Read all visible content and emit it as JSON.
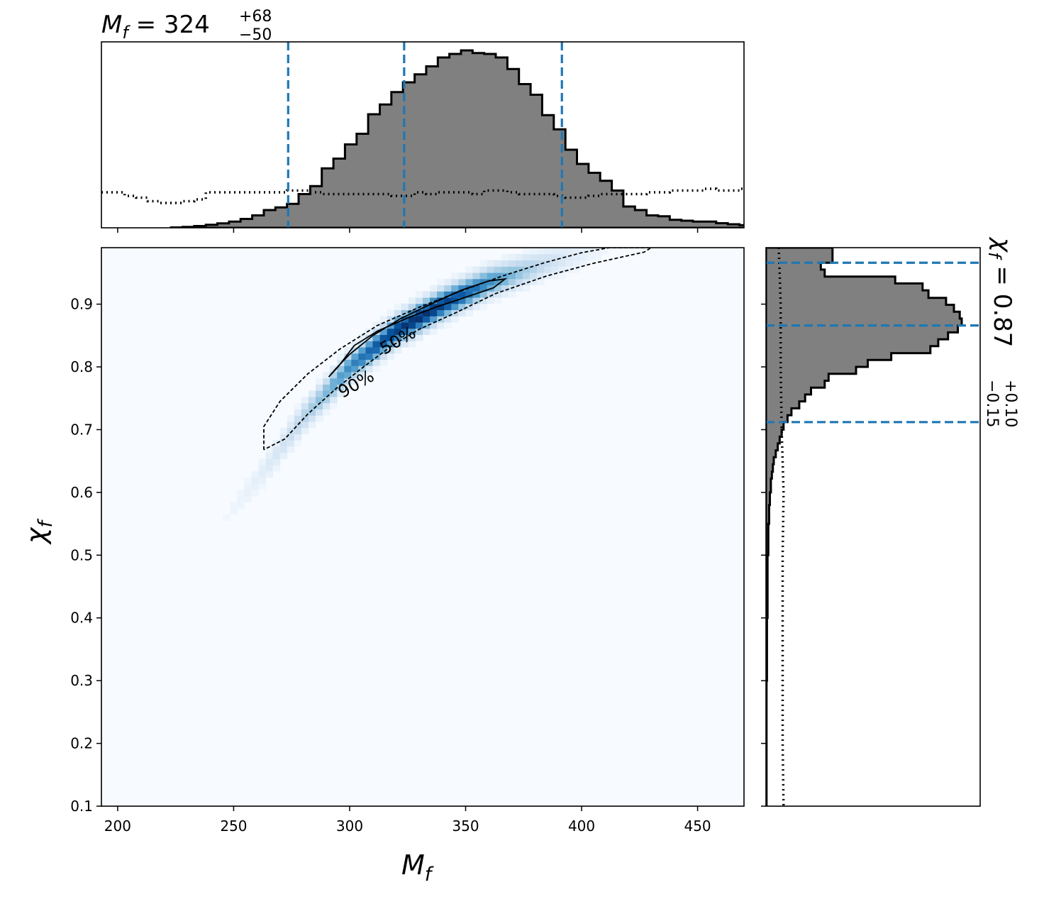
{
  "chart_data": {
    "type": "corner-2d-histogram",
    "x_axis": {
      "label": "M",
      "label_sub": "f",
      "ticks": [
        200,
        250,
        300,
        350,
        400,
        450
      ],
      "tick_labels": [
        "200",
        "250",
        "300",
        "350",
        "400",
        "450"
      ],
      "range": [
        193,
        470
      ]
    },
    "y_axis": {
      "label": "χ",
      "label_sub": "f",
      "ticks": [
        0.1,
        0.2,
        0.3,
        0.4,
        0.5,
        0.6,
        0.7,
        0.8,
        0.9
      ],
      "tick_labels": [
        "0.1",
        "0.2",
        "0.3",
        "0.4",
        "0.5",
        "0.6",
        "0.7",
        "0.8",
        "0.9"
      ],
      "range": [
        0.1,
        0.99
      ]
    },
    "top_title": {
      "symbol": "M",
      "sub": "f",
      "eq": " = ",
      "median": "324",
      "upper": "+68",
      "lower": "−50"
    },
    "right_title": {
      "symbol": "χ",
      "sub": "f",
      "eq": " = ",
      "median": "0.87",
      "upper": "+0.10",
      "lower": "−0.15"
    },
    "mf_quantiles": [
      273.5,
      323.5,
      391.5
    ],
    "chi_quantiles": [
      0.712,
      0.866,
      0.966
    ],
    "mf_hist": {
      "start": 223,
      "width": 5,
      "counts": [
        0.002,
        0.005,
        0.01,
        0.017,
        0.025,
        0.035,
        0.05,
        0.07,
        0.1,
        0.115,
        0.135,
        0.19,
        0.235,
        0.335,
        0.39,
        0.47,
        0.53,
        0.64,
        0.695,
        0.765,
        0.82,
        0.865,
        0.91,
        0.96,
        0.98,
        1.0,
        0.985,
        0.98,
        0.96,
        0.895,
        0.81,
        0.75,
        0.635,
        0.555,
        0.44,
        0.36,
        0.31,
        0.265,
        0.21,
        0.12,
        0.1,
        0.07,
        0.065,
        0.045,
        0.04,
        0.035,
        0.035,
        0.026,
        0.02,
        0.015,
        0.008,
        0.004,
        0.002,
        0.0
      ]
    },
    "mf_prior": {
      "start": 193,
      "width": 5,
      "values": [
        0.2,
        0.2,
        0.18,
        0.17,
        0.15,
        0.14,
        0.14,
        0.15,
        0.16,
        0.2,
        0.2,
        0.2,
        0.2,
        0.2,
        0.2,
        0.2,
        0.21,
        0.21,
        0.2,
        0.19,
        0.19,
        0.19,
        0.19,
        0.19,
        0.19,
        0.18,
        0.18,
        0.2,
        0.19,
        0.2,
        0.2,
        0.2,
        0.19,
        0.21,
        0.21,
        0.2,
        0.19,
        0.19,
        0.19,
        0.18,
        0.17,
        0.17,
        0.18,
        0.19,
        0.19,
        0.19,
        0.19,
        0.2,
        0.2,
        0.21,
        0.21,
        0.21,
        0.22,
        0.21,
        0.21,
        0.22
      ]
    },
    "chi_hist": {
      "bins_top_down": [
        [
          0.99,
          0.966,
          0.34
        ],
        [
          0.966,
          0.955,
          0.28
        ],
        [
          0.955,
          0.944,
          0.3
        ],
        [
          0.944,
          0.933,
          0.66
        ],
        [
          0.933,
          0.922,
          0.8
        ],
        [
          0.922,
          0.91,
          0.83
        ],
        [
          0.91,
          0.899,
          0.92
        ],
        [
          0.899,
          0.888,
          0.96
        ],
        [
          0.888,
          0.877,
          0.99
        ],
        [
          0.877,
          0.866,
          1.0
        ],
        [
          0.866,
          0.855,
          0.98
        ],
        [
          0.855,
          0.844,
          0.93
        ],
        [
          0.844,
          0.833,
          0.88
        ],
        [
          0.833,
          0.822,
          0.84
        ],
        [
          0.822,
          0.811,
          0.64
        ],
        [
          0.811,
          0.8,
          0.52
        ],
        [
          0.8,
          0.789,
          0.46
        ],
        [
          0.789,
          0.778,
          0.32
        ],
        [
          0.778,
          0.767,
          0.3
        ],
        [
          0.767,
          0.756,
          0.23
        ],
        [
          0.756,
          0.745,
          0.2
        ],
        [
          0.745,
          0.734,
          0.17
        ],
        [
          0.734,
          0.723,
          0.13
        ],
        [
          0.723,
          0.712,
          0.11
        ],
        [
          0.712,
          0.7,
          0.09
        ],
        [
          0.7,
          0.689,
          0.08
        ],
        [
          0.689,
          0.678,
          0.07
        ],
        [
          0.678,
          0.667,
          0.06
        ],
        [
          0.667,
          0.656,
          0.05
        ],
        [
          0.656,
          0.645,
          0.04
        ],
        [
          0.645,
          0.633,
          0.035
        ],
        [
          0.633,
          0.622,
          0.03
        ],
        [
          0.622,
          0.6,
          0.025
        ],
        [
          0.6,
          0.58,
          0.02
        ],
        [
          0.58,
          0.55,
          0.016
        ],
        [
          0.55,
          0.5,
          0.012
        ],
        [
          0.5,
          0.4,
          0.008
        ],
        [
          0.4,
          0.3,
          0.005
        ],
        [
          0.3,
          0.1,
          0.003
        ]
      ]
    },
    "chi_prior": {
      "points": [
        [
          0.99,
          0.065
        ],
        [
          0.95,
          0.07
        ],
        [
          0.9,
          0.075
        ],
        [
          0.8,
          0.075
        ],
        [
          0.7,
          0.08
        ],
        [
          0.65,
          0.085
        ],
        [
          0.6,
          0.09
        ],
        [
          0.5,
          0.085
        ],
        [
          0.4,
          0.085
        ],
        [
          0.3,
          0.085
        ],
        [
          0.2,
          0.085
        ],
        [
          0.1,
          0.09
        ]
      ]
    },
    "contours": {
      "c50": [
        [
          291,
          0.784
        ],
        [
          294,
          0.797
        ],
        [
          300,
          0.82
        ],
        [
          310,
          0.85
        ],
        [
          322,
          0.877
        ],
        [
          335,
          0.9
        ],
        [
          348,
          0.922
        ],
        [
          360,
          0.937
        ],
        [
          367,
          0.94
        ],
        [
          362,
          0.926
        ],
        [
          350,
          0.911
        ],
        [
          337,
          0.895
        ],
        [
          325,
          0.878
        ],
        [
          312,
          0.857
        ],
        [
          302,
          0.834
        ],
        [
          295,
          0.8
        ],
        [
          291,
          0.784
        ]
      ],
      "c90": [
        [
          263,
          0.668
        ],
        [
          263,
          0.705
        ],
        [
          270,
          0.745
        ],
        [
          282,
          0.789
        ],
        [
          296,
          0.829
        ],
        [
          312,
          0.866
        ],
        [
          330,
          0.895
        ],
        [
          348,
          0.921
        ],
        [
          366,
          0.945
        ],
        [
          384,
          0.966
        ],
        [
          400,
          0.982
        ],
        [
          412,
          0.99
        ],
        [
          430,
          0.99
        ],
        [
          427,
          0.983
        ],
        [
          405,
          0.965
        ],
        [
          385,
          0.945
        ],
        [
          363,
          0.917
        ],
        [
          345,
          0.885
        ],
        [
          330,
          0.86
        ],
        [
          318,
          0.833
        ],
        [
          306,
          0.8
        ],
        [
          294,
          0.765
        ],
        [
          282,
          0.725
        ],
        [
          272,
          0.685
        ],
        [
          263,
          0.668
        ]
      ],
      "labels": [
        {
          "text": "50%",
          "x": 322,
          "y": 0.834,
          "angle": -30
        },
        {
          "text": "90%",
          "x": 304,
          "y": 0.765,
          "angle": -30
        }
      ]
    },
    "density": {
      "ridge": [
        [
          240,
          0.53
        ],
        [
          262,
          0.63
        ],
        [
          280,
          0.72
        ],
        [
          300,
          0.8
        ],
        [
          320,
          0.858
        ],
        [
          340,
          0.9
        ],
        [
          360,
          0.935
        ],
        [
          385,
          0.965
        ],
        [
          410,
          0.99
        ],
        [
          430,
          1.0
        ]
      ],
      "peak_x": 330,
      "sigma_x": 28,
      "sigma_perp": 0.013
    },
    "colors": {
      "hist_fill": "#808080",
      "quantile_line": "#1f77b4",
      "density_low": "#f7fbff",
      "density_high": "#08306b"
    }
  }
}
